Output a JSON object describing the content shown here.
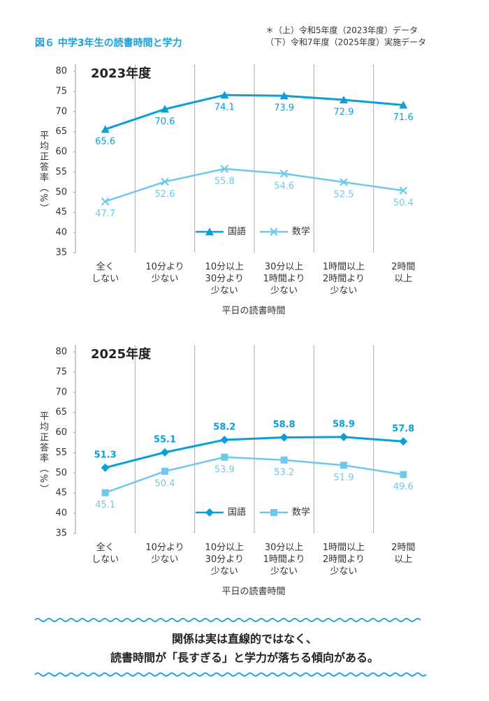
{
  "header": {
    "title": "図６ 中学3年生の読書時間と学力",
    "notes": [
      "＊（上）令和5年度（2023年度）データ",
      "（下）令和7年度（2025年度）実施データ"
    ]
  },
  "chart_data": [
    {
      "type": "line",
      "subtitle": "2023年度",
      "x_label": "平日の読書時間",
      "y_label": "平均正答率（%）",
      "categories": [
        "全く\nしない",
        "10分より\n少ない",
        "10分以上\n30分より\n少ない",
        "30分以上\n1時間より\n少ない",
        "1時間以上\n2時間より\n少ない",
        "2時間\n以上"
      ],
      "ylim": [
        35,
        80
      ],
      "yticks": [
        35,
        40,
        45,
        50,
        55,
        60,
        65,
        70,
        75,
        80
      ],
      "legend": "bottom-center",
      "series": [
        {
          "name": "国語",
          "color": "#0a9fd8",
          "marker": "triangle",
          "label_position": "below",
          "label_weight": "normal",
          "values": [
            65.6,
            70.6,
            74.1,
            73.9,
            72.9,
            71.6
          ]
        },
        {
          "name": "数学",
          "color": "#6ec8ec",
          "marker": "x",
          "label_position": "below",
          "label_weight": "normal",
          "values": [
            47.7,
            52.6,
            55.8,
            54.6,
            52.5,
            50.4
          ]
        }
      ]
    },
    {
      "type": "line",
      "subtitle": "2025年度",
      "x_label": "平日の読書時間",
      "y_label": "平均正答率（%）",
      "categories": [
        "全く\nしない",
        "10分より\n少ない",
        "10分以上\n30分より\n少ない",
        "30分以上\n1時間より\n少ない",
        "1時間以上\n2時間より\n少ない",
        "2時間\n以上"
      ],
      "ylim": [
        35,
        80
      ],
      "yticks": [
        35,
        40,
        45,
        50,
        55,
        60,
        65,
        70,
        75,
        80
      ],
      "legend": "bottom-center",
      "series": [
        {
          "name": "国語",
          "color": "#0a9fd8",
          "marker": "diamond",
          "label_position": "above",
          "label_weight": "bold",
          "values": [
            51.3,
            55.1,
            58.2,
            58.8,
            58.9,
            57.8
          ]
        },
        {
          "name": "数学",
          "color": "#6ec8ec",
          "marker": "square",
          "label_position": "below",
          "label_weight": "normal",
          "values": [
            45.1,
            50.4,
            53.9,
            53.2,
            51.9,
            49.6
          ]
        }
      ]
    }
  ],
  "footer": {
    "lines": [
      "関係は実は直線的ではなく、",
      "読書時間が「長すぎる」と学力が落ちる傾向がある。"
    ]
  }
}
